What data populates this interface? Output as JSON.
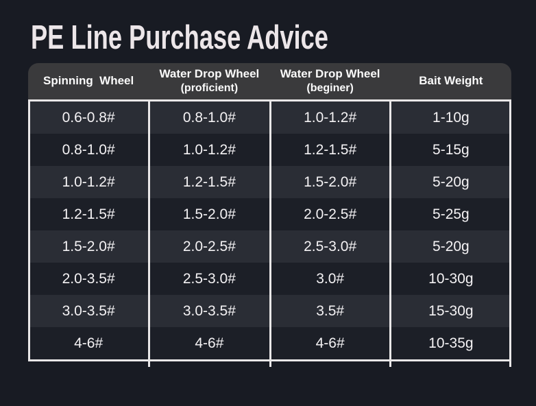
{
  "page_title": "PE Line Purchase Advice",
  "colors": {
    "background": "#181b23",
    "header_background": "#3a3a3c",
    "row_light": "#2a2d35",
    "row_dark": "#1c1f27",
    "grid_line": "#e9e7e8",
    "title_text": "#ece6e9",
    "cell_text": "#f4f2f4"
  },
  "chart_data": {
    "type": "table",
    "title": "PE Line Purchase Advice",
    "legend_position": "none",
    "grid": "white column dividers, header separator and bottom border; alternating row shading",
    "columns": [
      "Spinning  Wheel",
      "Water Drop Wheel (proficient)",
      "Water Drop Wheel (beginer)",
      "Bait Weight"
    ],
    "header_lines": [
      {
        "line1": "Spinning  Wheel",
        "line2": ""
      },
      {
        "line1": "Water Drop Wheel",
        "line2": "(proficient)"
      },
      {
        "line1": "Water Drop Wheel",
        "line2": "(beginer)"
      },
      {
        "line1": "Bait Weight",
        "line2": ""
      }
    ],
    "rows": [
      [
        "0.6-0.8#",
        "0.8-1.0#",
        "1.0-1.2#",
        "1-10g"
      ],
      [
        "0.8-1.0#",
        "1.0-1.2#",
        "1.2-1.5#",
        "5-15g"
      ],
      [
        "1.0-1.2#",
        "1.2-1.5#",
        "1.5-2.0#",
        "5-20g"
      ],
      [
        "1.2-1.5#",
        "1.5-2.0#",
        "2.0-2.5#",
        "5-25g"
      ],
      [
        "1.5-2.0#",
        "2.0-2.5#",
        "2.5-3.0#",
        "5-20g"
      ],
      [
        "2.0-3.5#",
        "2.5-3.0#",
        "3.0#",
        "10-30g"
      ],
      [
        "3.0-3.5#",
        "3.0-3.5#",
        "3.5#",
        "15-30g"
      ],
      [
        "4-6#",
        "4-6#",
        "4-6#",
        "10-35g"
      ]
    ]
  }
}
